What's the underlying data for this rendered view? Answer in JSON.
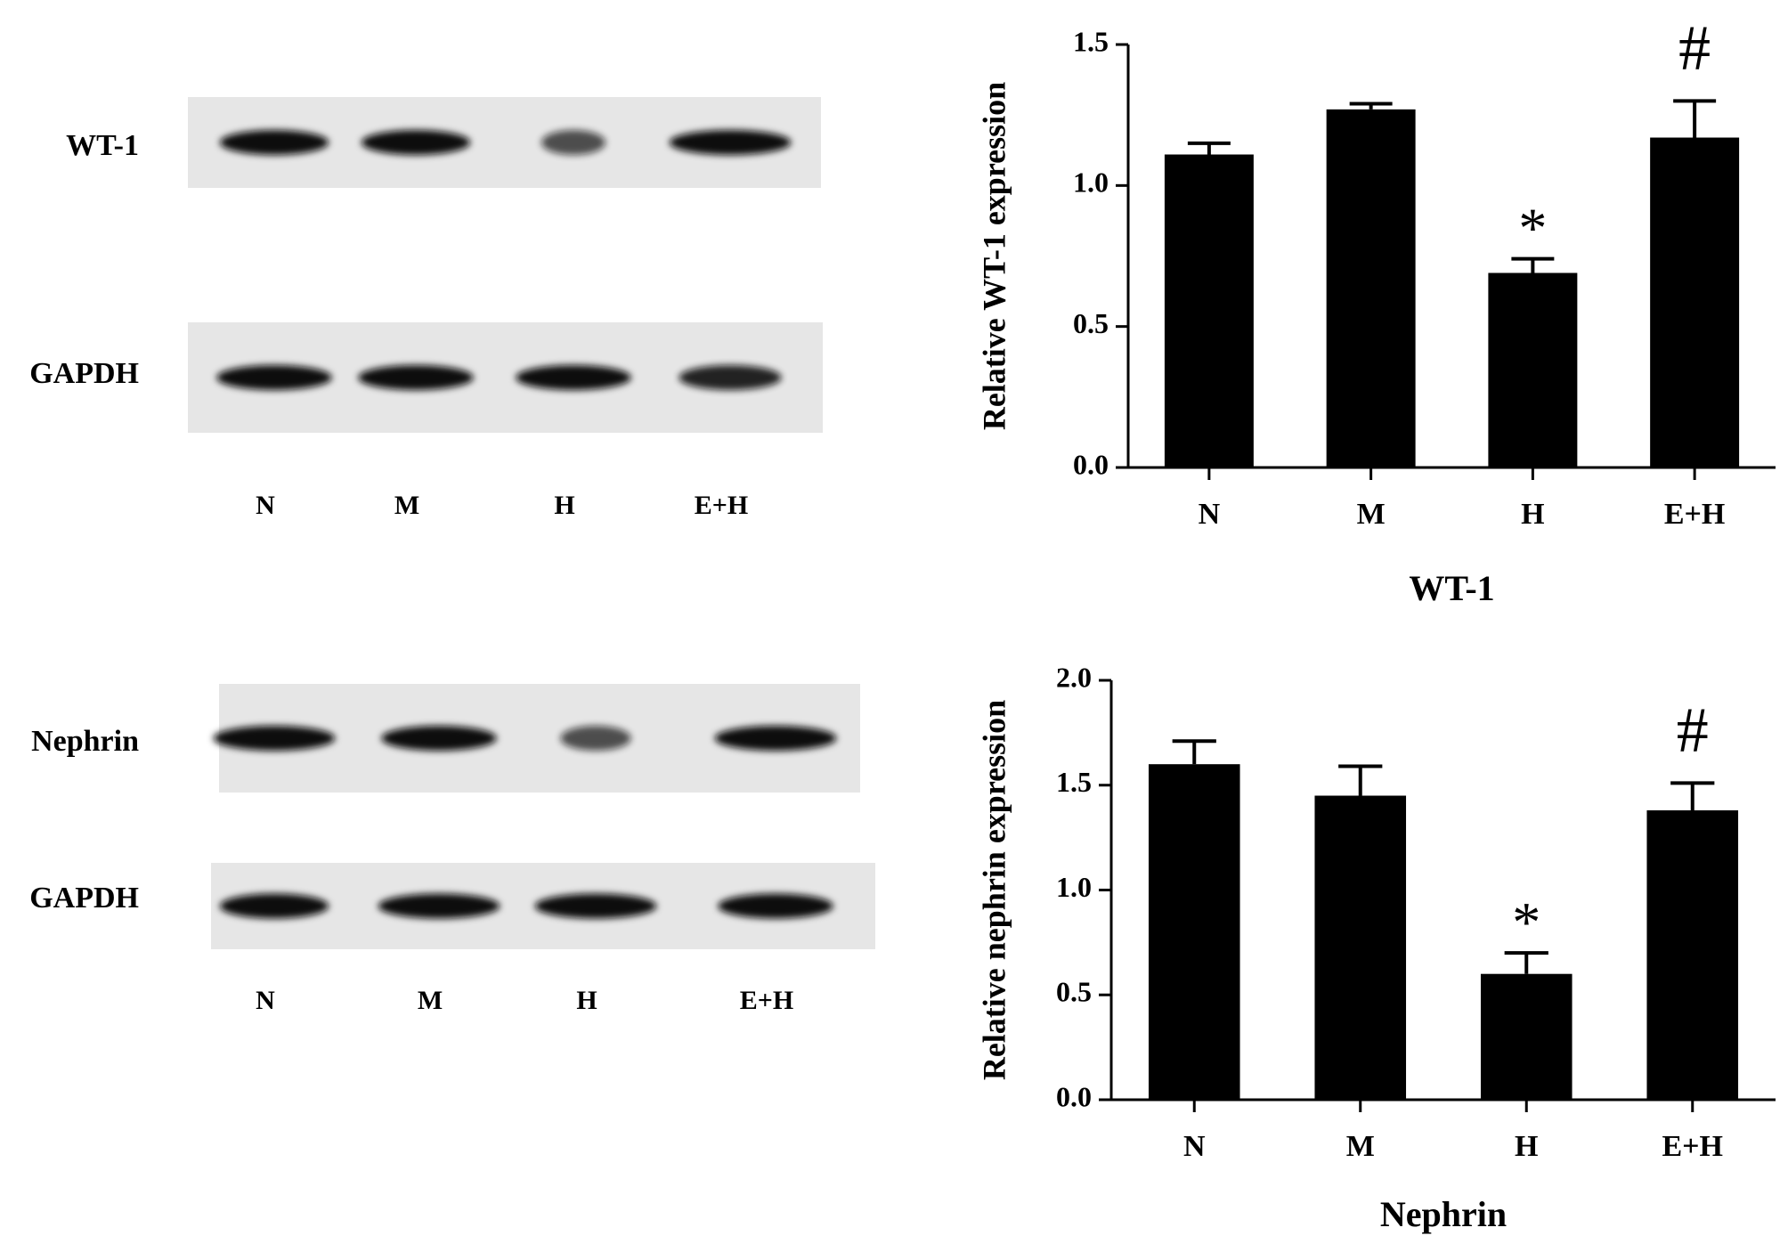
{
  "blots": [
    {
      "rows": [
        "WT-1",
        "GAPDH"
      ],
      "lanes": [
        "N",
        "M",
        "H",
        "E+H"
      ]
    },
    {
      "rows": [
        "Nephrin",
        "GAPDH"
      ],
      "lanes": [
        "N",
        "M",
        "H",
        "E+H"
      ]
    }
  ],
  "chart_data": [
    {
      "type": "bar",
      "title": "WT-1",
      "y_label": "Relative WT-1 expression",
      "categories": [
        "N",
        "M",
        "H",
        "E+H"
      ],
      "values": [
        1.11,
        1.27,
        0.69,
        1.17
      ],
      "errors": [
        0.04,
        0.02,
        0.05,
        0.13
      ],
      "markers": [
        null,
        null,
        "*",
        "#"
      ],
      "color": "#000000",
      "ylim": [
        0,
        1.5
      ],
      "yticks": [
        {
          "value": 0,
          "label": "0.0"
        },
        {
          "value": 0.5,
          "label": "0.5"
        },
        {
          "value": 1,
          "label": "1.0"
        },
        {
          "value": 1.5,
          "label": "1.5"
        }
      ]
    },
    {
      "type": "bar",
      "title": "Nephrin",
      "y_label": "Relative nephrin expression",
      "categories": [
        "N",
        "M",
        "H",
        "E+H"
      ],
      "values": [
        1.6,
        1.45,
        0.6,
        1.38
      ],
      "errors": [
        0.11,
        0.14,
        0.1,
        0.13
      ],
      "markers": [
        null,
        null,
        "*",
        "#"
      ],
      "color": "#000000",
      "ylim": [
        0,
        2
      ],
      "yticks": [
        {
          "value": 0,
          "label": "0.0"
        },
        {
          "value": 0.5,
          "label": "0.5"
        },
        {
          "value": 1,
          "label": "1.0"
        },
        {
          "value": 1.5,
          "label": "1.5"
        },
        {
          "value": 2,
          "label": "2.0"
        }
      ]
    }
  ]
}
